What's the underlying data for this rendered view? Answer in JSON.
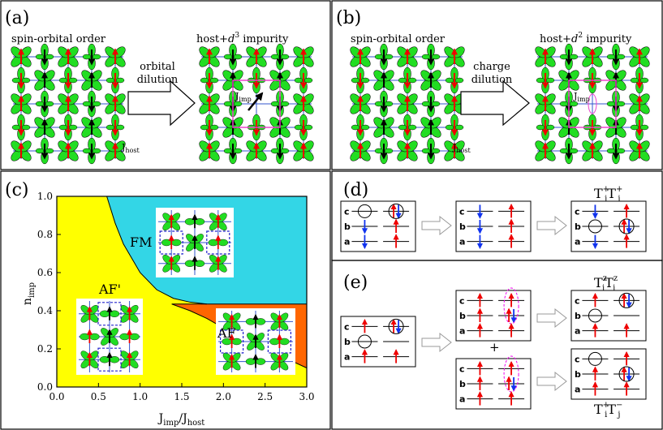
{
  "panels": {
    "a": {
      "tag": "(a)",
      "left_title": "spin-orbital order",
      "right_title_pre": "host+",
      "right_title_d": "d",
      "right_title_sup": "3",
      "right_title_post": " impurity",
      "arrow_line1": "orbital",
      "arrow_line2": "dilution",
      "j_imp": "J",
      "j_imp_sub": "imp",
      "j_host": "J",
      "j_host_sub": "host"
    },
    "b": {
      "tag": "(b)",
      "left_title": "spin-orbital order",
      "right_title_pre": "host+",
      "right_title_d": "d",
      "right_title_sup": "2",
      "right_title_post": " impurity",
      "arrow_line1": "charge",
      "arrow_line2": "dilution",
      "j_imp": "J",
      "j_imp_sub": "imp",
      "j_host": "J",
      "j_host_sub": "host"
    },
    "c": {
      "tag": "(c)",
      "region_fm": "FM",
      "region_afp": "AF'",
      "region_af": "AF",
      "xlabel_main": "J",
      "xlabel_sub1": "imp",
      "xlabel_slash": "/J",
      "xlabel_sub2": "host",
      "ylabel_main": "n",
      "ylabel_sub": "imp"
    },
    "d": {
      "tag": "(d)",
      "formula_main1": "T",
      "formula_sub1": "i",
      "formula_sup1": "+",
      "formula_main2": "T",
      "formula_sub2": "j",
      "formula_sup2": "+",
      "orbital_labels": [
        "c",
        "b",
        "a"
      ]
    },
    "e": {
      "tag": "(e)",
      "formula_top_main1": "T",
      "formula_top_sub1": "i",
      "formula_top_sup1": "z",
      "formula_top_main2": "T",
      "formula_top_sub2": "j",
      "formula_top_sup2": "z",
      "formula_bot_main1": "T",
      "formula_bot_sub1": "i",
      "formula_bot_sup1": "+",
      "formula_bot_main2": "T",
      "formula_bot_sub2": "j",
      "formula_bot_sup2": "−",
      "plus": "+",
      "orbital_labels": [
        "c",
        "b",
        "a"
      ]
    }
  },
  "chart_data": {
    "type": "area",
    "x_ticks": [
      "0.0",
      "0.5",
      "1.0",
      "1.5",
      "2.0",
      "2.5",
      "3.0"
    ],
    "y_ticks": [
      "0.0",
      "0.2",
      "0.4",
      "0.6",
      "0.8",
      "1.0"
    ],
    "xlim": [
      0,
      3
    ],
    "ylim": [
      0,
      1
    ],
    "regions": [
      {
        "name": "FM",
        "color": "#33d6e6"
      },
      {
        "name": "AF'",
        "color": "#ffff00"
      },
      {
        "name": "AF",
        "color": "#ff6600"
      }
    ],
    "boundary_fm_afp": {
      "x": [
        0.6,
        0.7,
        0.8,
        1.0,
        1.2,
        1.4,
        1.6,
        1.8
      ],
      "y": [
        1.0,
        0.86,
        0.75,
        0.6,
        0.51,
        0.465,
        0.445,
        0.435
      ]
    },
    "boundary_fm_af": {
      "x": [
        1.38,
        3.0
      ],
      "y": [
        0.435,
        0.435
      ]
    },
    "boundary_afp_af": {
      "x": [
        1.38,
        1.6,
        1.8,
        2.0,
        2.2,
        2.5,
        2.8,
        3.0
      ],
      "y": [
        0.435,
        0.4,
        0.36,
        0.31,
        0.26,
        0.2,
        0.14,
        0.1
      ]
    }
  },
  "colors": {
    "orbital_green": "#22dd22",
    "spin_red": "#ee0000",
    "spin_blue": "#1133ee",
    "bond_blue": "#3355cc",
    "bond_pink": "#ee44cc",
    "ellipse_magenta": "#ee00ee",
    "dash_box_blue": "#2222cc"
  }
}
